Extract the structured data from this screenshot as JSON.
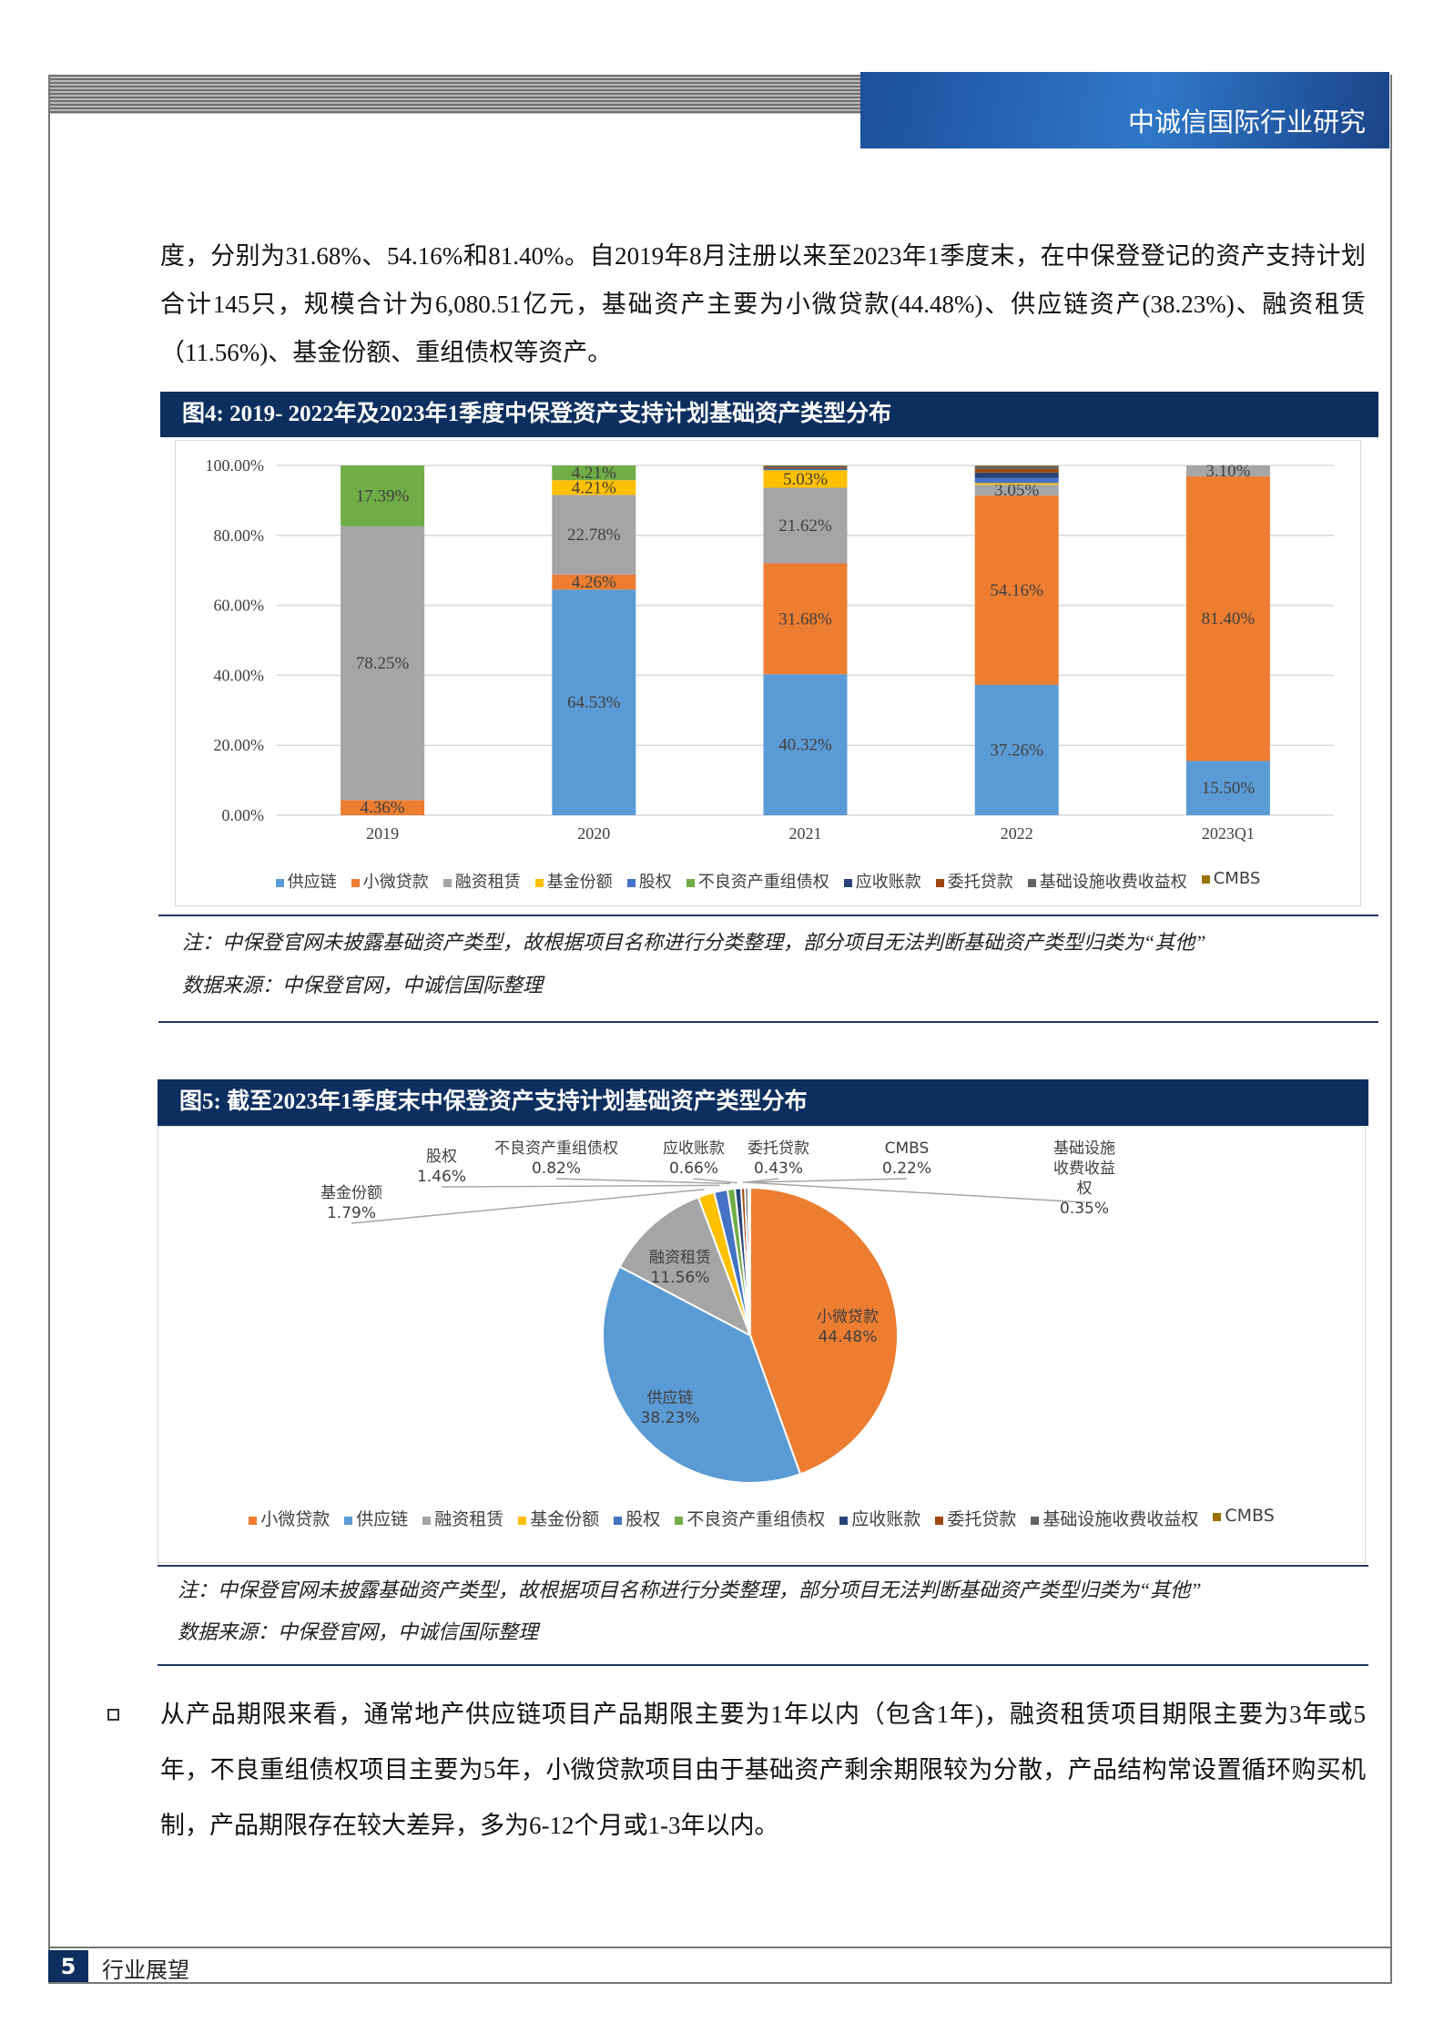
{
  "header": {
    "title": "中诚信国际行业研究"
  },
  "paragraphs": [
    "度，分别为31.68%、54.16%和81.40%。自2019年8月注册以来至2023年1季度末，在中保登登记的资产支持计划合计145只，规模合计为6,080.51亿元，基础资产主要为小微贷款(44.48%)、供应链资产(38.23%)、融资租赁（11.56%)、基金份额、重组债权等资产。",
    "从产品期限来看，通常地产供应链项目产品期限主要为1年以内（包含1年)，融资租赁项目期限主要为3年或5年，不良重组债权项目主要为5年，小微贷款项目由于基础资产剩余期限较为分散，产品结构常设置循环购买机制，产品期限存在较大差异，多为6-12个月或1-3年以内。"
  ],
  "chart_data": [
    {
      "type": "stacked_bar",
      "title": "图4: 2019- 2022年及2023年1季度中保登资产支持计划基础资产类型分布",
      "categories": [
        "2019",
        "2020",
        "2021",
        "2022",
        "2023Q1"
      ],
      "ylim": [
        0,
        100
      ],
      "yticks": [
        {
          "value": 0,
          "label": "0.00%"
        },
        {
          "value": 20,
          "label": "20.00%"
        },
        {
          "value": 40,
          "label": "40.00%"
        },
        {
          "value": 60,
          "label": "60.00%"
        },
        {
          "value": 80,
          "label": "80.00%"
        },
        {
          "value": 100,
          "label": "100.00%"
        }
      ],
      "grid": true,
      "series": [
        {
          "name": "供应链",
          "color": "#5b9bd5",
          "values": [
            0,
            64.53,
            40.32,
            37.26,
            15.5
          ],
          "value_labels": [
            null,
            "64.53%",
            "40.32%",
            "37.26%",
            "15.50%"
          ]
        },
        {
          "name": "小微贷款",
          "color": "#ed7d31",
          "values": [
            4.36,
            4.26,
            31.68,
            54.16,
            81.4
          ],
          "value_labels": [
            "4.36%",
            "4.26%",
            "31.68%",
            "54.16%",
            "81.40%"
          ]
        },
        {
          "name": "融资租赁",
          "color": "#a5a5a5",
          "values": [
            78.25,
            22.78,
            21.62,
            3.05,
            3.1
          ],
          "value_labels": [
            "78.25%",
            "22.78%",
            "21.62%",
            "3.05%",
            "3.10%"
          ]
        },
        {
          "name": "基金份额",
          "color": "#ffc000",
          "values": [
            0,
            4.21,
            5.03,
            0.5,
            0
          ],
          "value_labels": [
            null,
            "4.21%",
            "5.03%",
            null,
            null
          ]
        },
        {
          "name": "股权",
          "color": "#4472c4",
          "values": [
            0,
            0,
            0.3,
            1.5,
            0
          ],
          "value_labels": [
            null,
            null,
            null,
            null,
            null
          ]
        },
        {
          "name": "不良资产重组债权",
          "color": "#70ad47",
          "values": [
            17.39,
            4.21,
            0,
            0,
            0
          ],
          "value_labels": [
            "17.39%",
            "4.21%",
            null,
            null,
            null
          ]
        },
        {
          "name": "应收账款",
          "color": "#264478",
          "values": [
            0,
            0,
            0.2,
            1.5,
            0
          ],
          "value_labels": [
            null,
            null,
            null,
            null,
            null
          ]
        },
        {
          "name": "委托贷款",
          "color": "#9e480e",
          "values": [
            0,
            0,
            0.3,
            1.0,
            0
          ],
          "value_labels": [
            null,
            null,
            null,
            null,
            null
          ]
        },
        {
          "name": "基础设施收费收益权",
          "color": "#636363",
          "values": [
            0,
            0,
            0.45,
            0.87,
            0
          ],
          "value_labels": [
            null,
            null,
            null,
            null,
            null
          ]
        },
        {
          "name": "CMBS",
          "color": "#997300",
          "values": [
            0,
            0,
            0.1,
            0.16,
            0
          ],
          "value_labels": [
            null,
            null,
            null,
            null,
            null
          ]
        }
      ],
      "note": "注：中保登官网未披露基础资产类型，故根据项目名称进行分类整理，部分项目无法判断基础资产类型归类为“其他”",
      "source": "数据来源：中保登官网，中诚信国际整理"
    },
    {
      "type": "pie",
      "title": "图5: 截至2023年1季度末中保登资产支持计划基础资产类型分布",
      "categories": [
        "小微贷款",
        "供应链",
        "融资租赁",
        "基金份额",
        "股权",
        "不良资产重组债权",
        "应收账款",
        "委托贷款",
        "基础设施收费收益权",
        "CMBS"
      ],
      "values": [
        44.48,
        38.23,
        11.56,
        1.79,
        1.46,
        0.82,
        0.66,
        0.43,
        0.35,
        0.22
      ],
      "value_labels": [
        "44.48%",
        "38.23%",
        "11.56%",
        "1.79%",
        "1.46%",
        "0.82%",
        "0.66%",
        "0.43%",
        "0.35%",
        "0.22%"
      ],
      "colors": [
        "#ed7d31",
        "#5b9bd5",
        "#a5a5a5",
        "#ffc000",
        "#4472c4",
        "#70ad47",
        "#264478",
        "#9e480e",
        "#636363",
        "#997300"
      ],
      "note": "注：中保登官网未披露基础资产类型，故根据项目名称进行分类整理，部分项目无法判断基础资产类型归类为“其他”",
      "source": "数据来源：中保登官网，中诚信国际整理"
    }
  ],
  "footer": {
    "page": "5",
    "section": "行业展望"
  }
}
